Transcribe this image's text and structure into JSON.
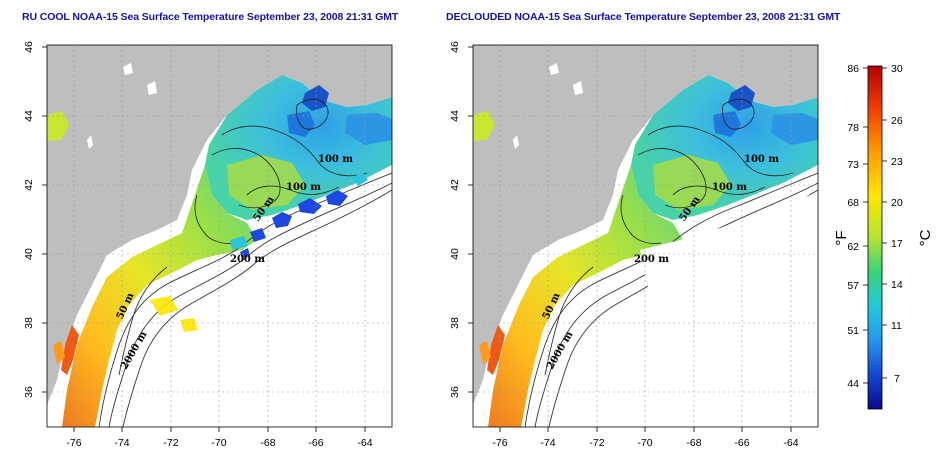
{
  "titles": {
    "left": "RU COOL NOAA-15 Sea Surface Temperature September 23, 2008 21:31 GMT",
    "right": "DECLOUDED NOAA-15 Sea Surface Temperature September 23, 2008 21:31 GMT"
  },
  "axes": {
    "lon_ticks": [
      "-76",
      "-74",
      "-72",
      "-70",
      "-68",
      "-66",
      "-64"
    ],
    "lat_ticks": [
      "46",
      "44",
      "42",
      "40",
      "38",
      "36"
    ]
  },
  "contour_labels": [
    "100 m",
    "100 m",
    "50 m",
    "200 m",
    "50 m",
    "2000 m"
  ],
  "colorbar": {
    "fahrenheit_ticks": [
      "86",
      "78",
      "73",
      "68",
      "62",
      "57",
      "51",
      "44"
    ],
    "celsius_ticks": [
      "30",
      "26",
      "23",
      "20",
      "17",
      "14",
      "11",
      "7"
    ],
    "f_unit": "°F",
    "c_unit": "°C"
  },
  "colors": {
    "land": "#bebebe",
    "cloud": "#ffffff",
    "title": "#1414a0"
  }
}
